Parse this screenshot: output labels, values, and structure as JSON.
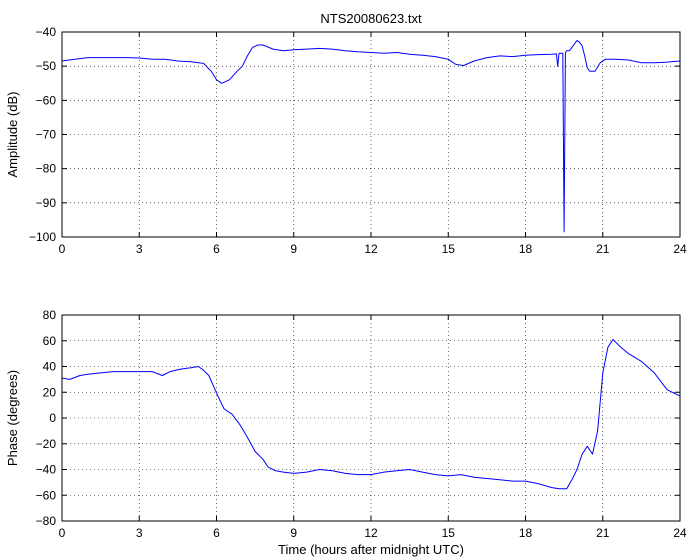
{
  "chart_data": [
    {
      "type": "line",
      "title": "NTS20080623.txt",
      "xlabel": "",
      "ylabel": "Amplitude (dB)",
      "xlim": [
        0,
        24
      ],
      "ylim": [
        -100,
        -40
      ],
      "xticks": [
        0,
        3,
        6,
        9,
        12,
        15,
        18,
        21,
        24
      ],
      "yticks": [
        -100,
        -90,
        -80,
        -70,
        -60,
        -50,
        -40
      ],
      "grid": "dotted",
      "color": "#0000ff",
      "series": [
        {
          "x": [
            0,
            0.5,
            1,
            1.5,
            2,
            2.5,
            3,
            3.5,
            4,
            4.5,
            5,
            5.5,
            5.8,
            6.0,
            6.2,
            6.5,
            6.8,
            7.0,
            7.2,
            7.4,
            7.6,
            7.8,
            8.2,
            8.6,
            9,
            9.5,
            10,
            10.5,
            11,
            11.5,
            12,
            12.5,
            13,
            13.5,
            14,
            14.5,
            15,
            15.3,
            15.6,
            16,
            16.5,
            17,
            17.5,
            18,
            18.5,
            19,
            19.2,
            19.25,
            19.3,
            19.35,
            19.4,
            19.45,
            19.5,
            19.55,
            19.6,
            19.7,
            19.8,
            19.9,
            20.0,
            20.1,
            20.2,
            20.3,
            20.4,
            20.5,
            20.7,
            20.9,
            21.1,
            21.5,
            22,
            22.5,
            23,
            23.5,
            24
          ],
          "y": [
            -48.5,
            -48.0,
            -47.5,
            -47.5,
            -47.5,
            -47.5,
            -47.6,
            -48.0,
            -48.0,
            -48.5,
            -48.7,
            -49.2,
            -51.5,
            -54.0,
            -55.0,
            -54.0,
            -51.5,
            -50.0,
            -47.0,
            -44.5,
            -43.8,
            -43.8,
            -45.0,
            -45.5,
            -45.2,
            -45.0,
            -44.8,
            -45.0,
            -45.5,
            -45.8,
            -46.0,
            -46.2,
            -46.0,
            -46.5,
            -46.8,
            -47.2,
            -48.0,
            -49.5,
            -49.8,
            -48.5,
            -47.5,
            -47.0,
            -47.2,
            -46.8,
            -46.6,
            -46.5,
            -46.4,
            -50.0,
            -46.3,
            -46.2,
            -46.2,
            -46.2,
            -98.5,
            -46.0,
            -45.5,
            -45.5,
            -44.5,
            -43.5,
            -42.5,
            -43.0,
            -44.0,
            -47.0,
            -50.5,
            -51.5,
            -51.5,
            -49.0,
            -48.0,
            -48.0,
            -48.2,
            -49.0,
            -49.0,
            -48.8,
            -48.5
          ]
        }
      ]
    },
    {
      "type": "line",
      "title": "",
      "xlabel": "Time (hours after midnight UTC)",
      "ylabel": "Phase (degrees)",
      "xlim": [
        0,
        24
      ],
      "ylim": [
        -80,
        80
      ],
      "xticks": [
        0,
        3,
        6,
        9,
        12,
        15,
        18,
        21,
        24
      ],
      "yticks": [
        -80,
        -60,
        -40,
        -20,
        0,
        20,
        40,
        60,
        80
      ],
      "grid": "dotted",
      "color": "#0000ff",
      "series": [
        {
          "x": [
            0,
            0.3,
            0.7,
            1,
            1.5,
            2,
            2.5,
            3,
            3.5,
            3.9,
            4.2,
            4.6,
            5.0,
            5.3,
            5.5,
            5.7,
            5.9,
            6.1,
            6.3,
            6.6,
            6.9,
            7.2,
            7.5,
            7.8,
            8.0,
            8.3,
            8.6,
            9,
            9.5,
            10,
            10.5,
            11,
            11.5,
            12,
            12.5,
            13,
            13.5,
            14,
            14.5,
            15,
            15.5,
            16,
            16.5,
            17,
            17.5,
            18,
            18.5,
            19,
            19.3,
            19.6,
            19.8,
            20.0,
            20.2,
            20.4,
            20.6,
            20.8,
            21.0,
            21.2,
            21.4,
            21.7,
            22,
            22.5,
            23,
            23.5,
            24
          ],
          "y": [
            31,
            30,
            33,
            34,
            35,
            36,
            36,
            36,
            36,
            33,
            36,
            38,
            39,
            40,
            37,
            33,
            24,
            15,
            7,
            3,
            -5,
            -15,
            -26,
            -32,
            -38,
            -41,
            -42,
            -43,
            -42,
            -40,
            -41,
            -43,
            -44,
            -44,
            -42,
            -41,
            -40,
            -42,
            -44,
            -45,
            -44,
            -46,
            -47,
            -48,
            -49,
            -49,
            -51,
            -54,
            -55,
            -55,
            -48,
            -40,
            -28,
            -22,
            -28,
            -10,
            35,
            55,
            61,
            55,
            50,
            44,
            35,
            22,
            17
          ]
        }
      ]
    }
  ]
}
